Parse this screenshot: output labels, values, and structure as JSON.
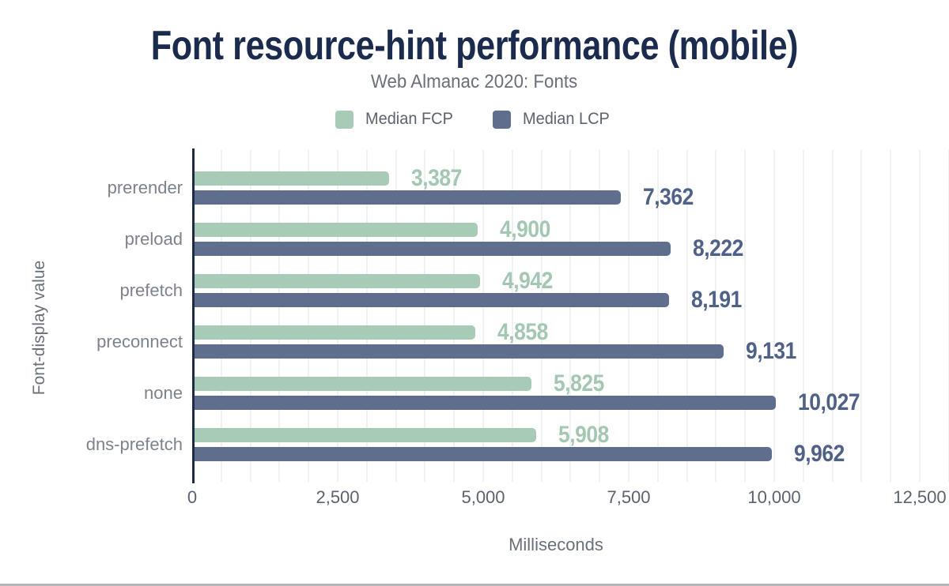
{
  "header": {
    "title": "Font resource-hint performance (mobile)",
    "subtitle": "Web Almanac 2020: Fonts"
  },
  "legend": [
    {
      "label": "Median FCP",
      "color": "#a8cbb8"
    },
    {
      "label": "Median LCP",
      "color": "#5f6e8c"
    }
  ],
  "chart_data": {
    "type": "bar",
    "orientation": "horizontal",
    "title": "Font resource-hint performance (mobile)",
    "subtitle": "Web Almanac 2020: Fonts",
    "xlabel": "Milliseconds",
    "ylabel": "Font-display value",
    "xlim": [
      0,
      12500
    ],
    "x_ticks": [
      {
        "value": 0,
        "label": "0"
      },
      {
        "value": 2500,
        "label": "2,500"
      },
      {
        "value": 5000,
        "label": "5,000"
      },
      {
        "value": 7500,
        "label": "7,500"
      },
      {
        "value": 10000,
        "label": "10,000"
      },
      {
        "value": 12500,
        "label": "12,500"
      }
    ],
    "gridline_step": 500,
    "grid": "vertical-minor",
    "legend_position": "top",
    "categories": [
      "prerender",
      "preload",
      "prefetch",
      "preconnect",
      "none",
      "dns-prefetch"
    ],
    "series": [
      {
        "name": "Median FCP",
        "color": "#a8cbb8",
        "label_color": "#a4c7b3",
        "values": [
          3387,
          4900,
          4942,
          4858,
          5825,
          5908
        ],
        "value_labels": [
          "3,387",
          "4,900",
          "4,942",
          "4,858",
          "5,825",
          "5,908"
        ]
      },
      {
        "name": "Median LCP",
        "color": "#5f6e8c",
        "label_color": "#506188",
        "values": [
          7362,
          8222,
          8191,
          9131,
          10027,
          9962
        ],
        "value_labels": [
          "7,362",
          "8,222",
          "8,191",
          "9,131",
          "10,027",
          "9,962"
        ]
      }
    ]
  },
  "colors": {
    "title": "#1b2b4e",
    "muted_text": "#697079",
    "axis_line": "#1d2b45",
    "gridline": "#f0f1f4",
    "background": "#ffffff"
  }
}
